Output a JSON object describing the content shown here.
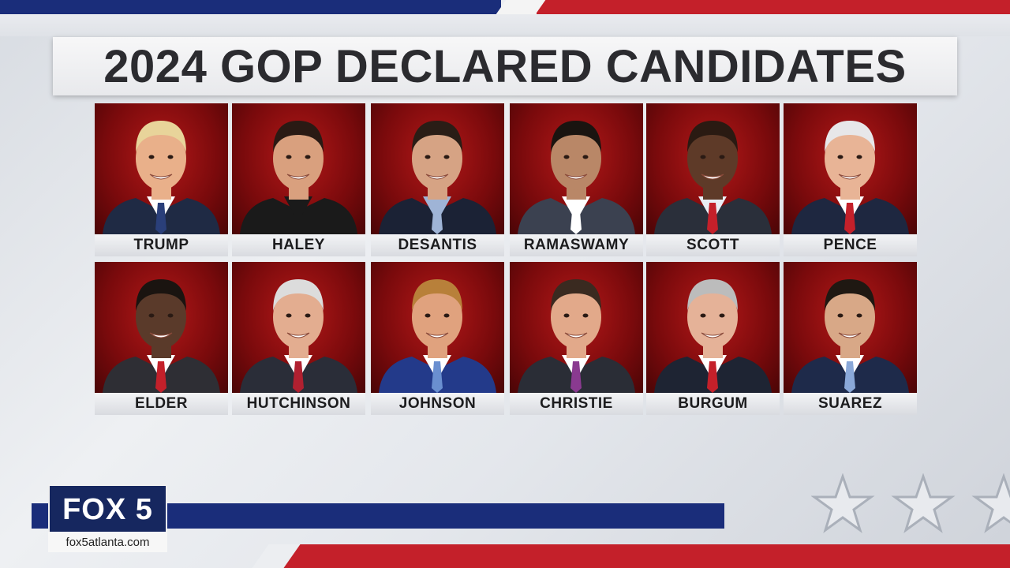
{
  "title": "2024 GOP DECLARED CANDIDATES",
  "colors": {
    "navy": "#1a2d7a",
    "red": "#c4202a",
    "photo_bg": "#8c0e10"
  },
  "candidates_row1": [
    {
      "name": "TRUMP",
      "skin": "#e9b08a",
      "hair": "#e8d49a",
      "suit": "#1f2a44",
      "shirt": "#ffffff",
      "tie": "#2a3f7a"
    },
    {
      "name": "HALEY",
      "skin": "#d9a07e",
      "hair": "#2a1a14",
      "suit": "#1a1a1a",
      "shirt": "#1a1a1a",
      "tie": "#1a1a1a"
    },
    {
      "name": "DESANTIS",
      "skin": "#d6a384",
      "hair": "#2a1d16",
      "suit": "#1b2235",
      "shirt": "#9fb4d6",
      "tie": "#9fb4d6"
    },
    {
      "name": "RAMASWAMY",
      "skin": "#b98767",
      "hair": "#1a1410",
      "suit": "#3b4150",
      "shirt": "#ffffff",
      "tie": "#ffffff"
    },
    {
      "name": "SCOTT",
      "skin": "#5e3a28",
      "hair": "#2a1a12",
      "suit": "#2a2f3a",
      "shirt": "#e9eef5",
      "tie": "#c4202a"
    },
    {
      "name": "PENCE",
      "skin": "#e8b496",
      "hair": "#e7e7e9",
      "suit": "#1e2740",
      "shirt": "#ffffff",
      "tie": "#c4202a"
    }
  ],
  "candidates_row2": [
    {
      "name": "ELDER",
      "skin": "#5a3a2a",
      "hair": "#1a1410",
      "suit": "#2e2e34",
      "shirt": "#ffffff",
      "tie": "#c4202a"
    },
    {
      "name": "HUTCHINSON",
      "skin": "#e3ad90",
      "hair": "#dcdcdc",
      "suit": "#2a2d38",
      "shirt": "#ffffff",
      "tie": "#b02030"
    },
    {
      "name": "JOHNSON",
      "skin": "#e0a27e",
      "hair": "#b8803a",
      "suit": "#233a8a",
      "shirt": "#ffffff",
      "tie": "#6a8fd0"
    },
    {
      "name": "CHRISTIE",
      "skin": "#e2a98a",
      "hair": "#3a2a20",
      "suit": "#2a2d36",
      "shirt": "#ffffff",
      "tie": "#8a3a90"
    },
    {
      "name": "BURGUM",
      "skin": "#e5b298",
      "hair": "#bcbcbc",
      "suit": "#1e2433",
      "shirt": "#ffffff",
      "tie": "#c4202a"
    },
    {
      "name": "SUAREZ",
      "skin": "#d8a887",
      "hair": "#1f1812",
      "suit": "#1e2a4a",
      "shirt": "#ffffff",
      "tie": "#8aa8d8"
    }
  ],
  "logo": {
    "text": "FOX 5",
    "url": "fox5atlanta.com"
  },
  "decorations": {
    "stars": [
      "star-icon",
      "star-icon",
      "star-icon"
    ]
  }
}
